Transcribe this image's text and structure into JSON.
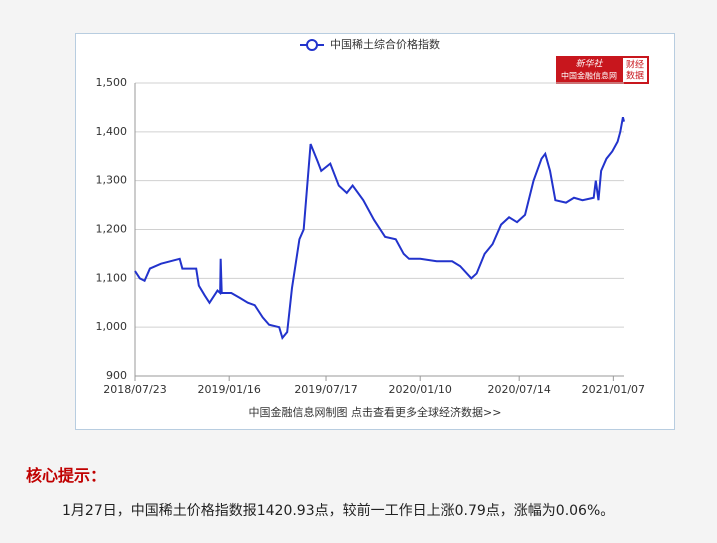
{
  "chart_data": {
    "type": "line",
    "x": [
      "2018/07/23",
      "2018/08/01",
      "2018/08/10",
      "2018/08/20",
      "2018/09/10",
      "2018/10/15",
      "2018/10/20",
      "2018/11/15",
      "2018/11/20",
      "2018/12/01",
      "2018/12/10",
      "2018/12/25",
      "2018/12/30",
      "2018/12/31",
      "2019/01/02",
      "2019/01/20",
      "2019/02/05",
      "2019/02/20",
      "2019/03/05",
      "2019/03/20",
      "2019/04/01",
      "2019/04/20",
      "2019/04/26",
      "2019/05/05",
      "2019/05/14",
      "2019/05/28",
      "2019/06/05",
      "2019/06/18",
      "2019/07/01",
      "2019/07/08",
      "2019/07/25",
      "2019/08/10",
      "2019/08/25",
      "2019/09/05",
      "2019/09/25",
      "2019/10/15",
      "2019/11/05",
      "2019/11/25",
      "2019/12/10",
      "2019/12/20",
      "2020/01/10",
      "2020/02/10",
      "2020/03/10",
      "2020/03/25",
      "2020/04/15",
      "2020/04/25",
      "2020/05/10",
      "2020/05/25",
      "2020/06/10",
      "2020/06/25",
      "2020/07/10",
      "2020/07/25",
      "2020/08/10",
      "2020/08/25",
      "2020/09/01",
      "2020/09/10",
      "2020/09/20",
      "2020/10/10",
      "2020/10/25",
      "2020/11/10",
      "2020/12/01",
      "2020/12/05",
      "2020/12/10",
      "2020/12/15",
      "2020/12/25",
      "2021/01/05",
      "2021/01/15",
      "2021/01/20",
      "2021/01/25",
      "2021/01/27"
    ],
    "series": [
      {
        "name": "中国稀土综合价格指数",
        "color": "#2233cc",
        "values": [
          1115,
          1100,
          1095,
          1120,
          1130,
          1140,
          1120,
          1120,
          1085,
          1065,
          1050,
          1075,
          1070,
          1140,
          1070,
          1070,
          1060,
          1050,
          1045,
          1020,
          1005,
          1000,
          978,
          990,
          1080,
          1180,
          1200,
          1375,
          1340,
          1320,
          1335,
          1290,
          1275,
          1290,
          1260,
          1220,
          1185,
          1180,
          1150,
          1140,
          1140,
          1135,
          1135,
          1125,
          1100,
          1110,
          1150,
          1170,
          1210,
          1225,
          1215,
          1230,
          1300,
          1345,
          1355,
          1320,
          1260,
          1255,
          1265,
          1260,
          1265,
          1300,
          1260,
          1320,
          1345,
          1360,
          1380,
          1400,
          1430,
          1420.93
        ]
      }
    ],
    "xlim": [
      "2018/07/23",
      "2021/01/27"
    ],
    "xticks": [
      "2018/07/23",
      "2019/01/16",
      "2019/07/17",
      "2020/01/10",
      "2020/07/14",
      "2021/01/07"
    ],
    "ylim": [
      900,
      1500
    ],
    "yticks": [
      900,
      {
        "value": 1000,
        "label": "1,000"
      },
      {
        "value": 1100,
        "label": "1,100"
      },
      {
        "value": 1200,
        "label": "1,200"
      },
      {
        "value": 1300,
        "label": "1,300"
      },
      {
        "value": 1400,
        "label": "1,400"
      },
      {
        "value": 1500,
        "label": "1,500"
      }
    ],
    "grid": true,
    "legend": "top",
    "source_note": "中国金融信息网制图 点击查看更多全球经济数据>>"
  },
  "logo": {
    "brand": "新华社",
    "site": "中国金融信息网",
    "tag_lines": [
      "财经",
      "数据"
    ]
  },
  "article": {
    "heading": "核心提示：",
    "body": "1月27日，中国稀土价格指数报1420.93点，较前一工作日上涨0.79点，涨幅为0.06%。"
  }
}
